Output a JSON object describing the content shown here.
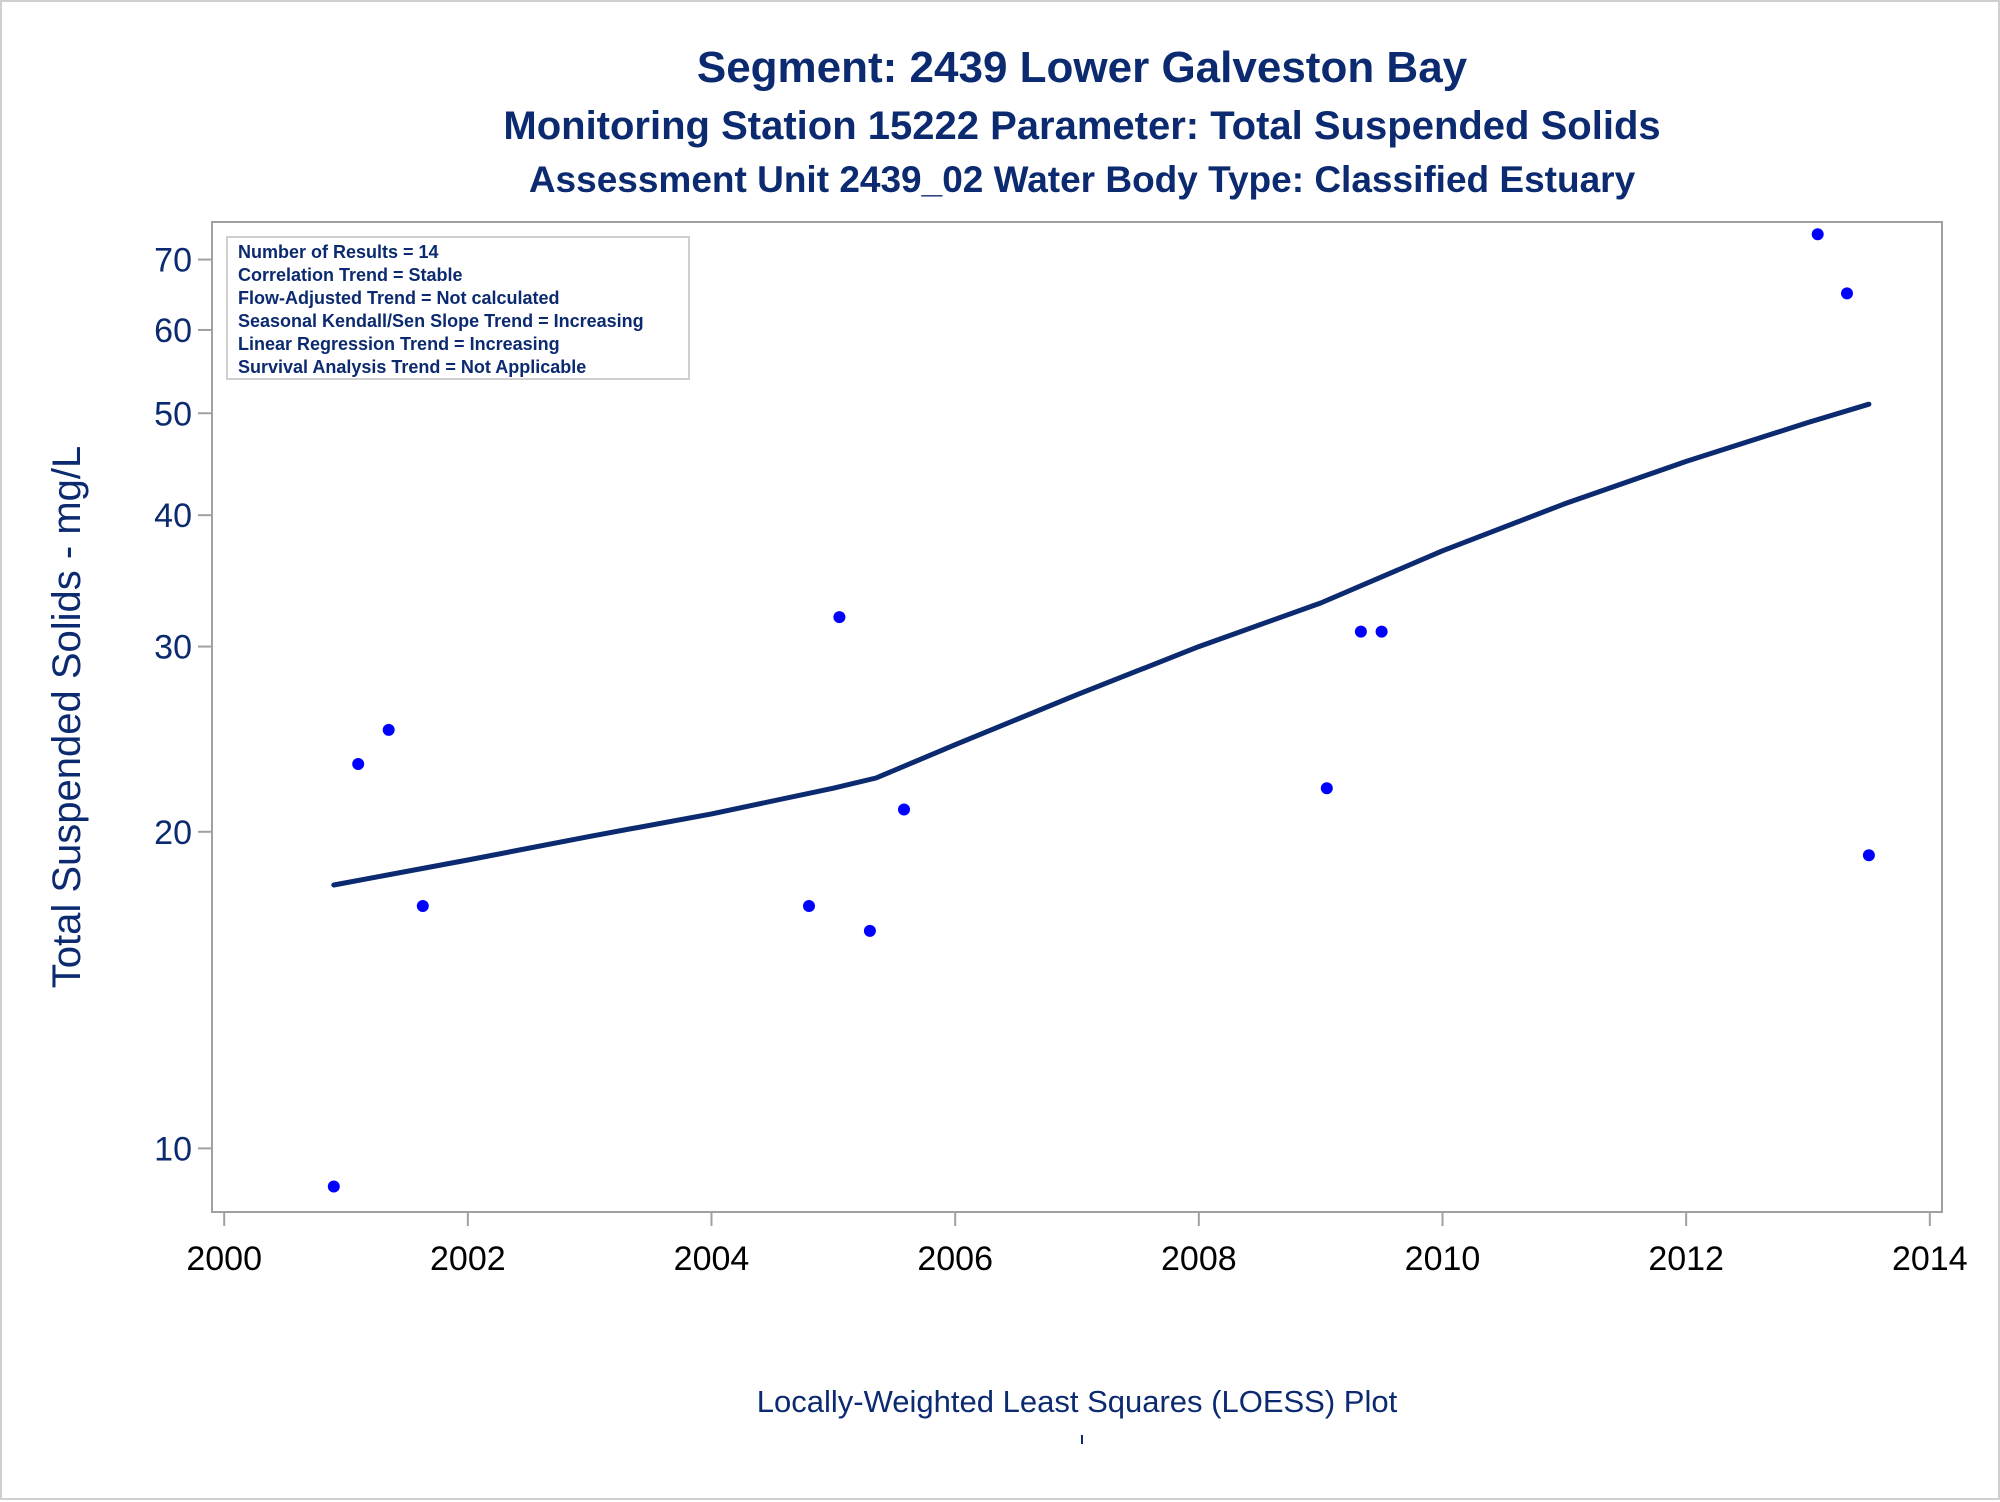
{
  "titles": [
    "Segment: 2439  Lower Galveston Bay",
    "Monitoring Station 15222 Parameter: Total Suspended Solids",
    "Assessment Unit 2439_02   Water Body Type: Classified Estuary"
  ],
  "stats_box": [
    "Number of Results = 14",
    "Correlation Trend = Stable",
    "Flow-Adjusted Trend = Not calculated",
    "Seasonal Kendall/Sen Slope Trend = Increasing",
    "Linear Regression Trend = Increasing",
    "Survival Analysis Trend = Not Applicable"
  ],
  "footnote": "Locally-Weighted Least Squares (LOESS) Plot",
  "colors": {
    "title": "#0b2a6f",
    "points": "#0000ff",
    "loess_line": "#0b2a6f",
    "axis_frame": "#a0a0a0"
  },
  "chart_data": {
    "type": "scatter",
    "title": "Segment: 2439  Lower Galveston Bay",
    "subtitle": "Monitoring Station 15222 Parameter: Total Suspended Solids",
    "xlabel": "",
    "ylabel": "Total Suspended Solids - mg/L",
    "x_scale": "linear",
    "y_scale": "log",
    "xlim": [
      1999.9,
      2014.1
    ],
    "ylim": [
      8.7,
      76
    ],
    "x_ticks": [
      2000,
      2002,
      2004,
      2006,
      2008,
      2010,
      2012,
      2014
    ],
    "y_ticks": [
      10,
      20,
      30,
      40,
      50,
      60,
      70
    ],
    "grid": false,
    "series": [
      {
        "kind": "points",
        "x": [
          2000.9,
          2001.1,
          2001.35,
          2001.63,
          2004.8,
          2005.05,
          2005.3,
          2005.58,
          2009.05,
          2009.33,
          2009.5,
          2013.08,
          2013.32,
          2013.5
        ],
        "y": [
          9.2,
          23.2,
          25.0,
          17.0,
          17.0,
          32.0,
          16.1,
          21.0,
          22.0,
          31.0,
          31.0,
          74.0,
          65.0,
          19.0
        ]
      },
      {
        "kind": "loess",
        "x": [
          2000.9,
          2002.0,
          2003.0,
          2004.0,
          2005.0,
          2005.35,
          2006.0,
          2007.0,
          2008.0,
          2009.0,
          2010.0,
          2011.0,
          2012.0,
          2013.0,
          2013.5
        ],
        "y": [
          17.8,
          18.8,
          19.8,
          20.8,
          22.0,
          22.5,
          24.2,
          27.0,
          30.0,
          33.0,
          37.0,
          41.0,
          45.0,
          49.0,
          51.0
        ]
      }
    ]
  }
}
